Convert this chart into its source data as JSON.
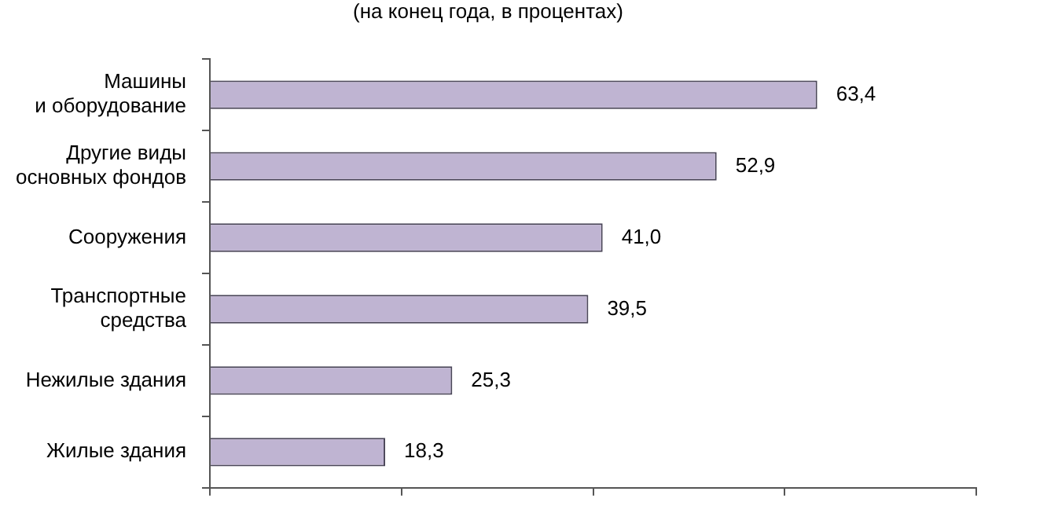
{
  "chart_data": {
    "type": "bar",
    "orientation": "horizontal",
    "subtitle": "(на конец года, в процентах)",
    "categories": [
      "Машины\nи оборудование",
      "Другие виды\nосновных фондов",
      "Сооружения",
      "Транспортные\nсредства",
      "Нежилые здания",
      "Жилые здания"
    ],
    "values": [
      63.4,
      52.9,
      41.0,
      39.5,
      25.3,
      18.3
    ],
    "value_labels": [
      "63,4",
      "52,9",
      "41,0",
      "39,5",
      "25,3",
      "18,3"
    ],
    "color": "#bfb4d2",
    "xlim": [
      0,
      80
    ],
    "xticks": [
      {
        "value": 0,
        "label": null
      },
      {
        "value": 20,
        "label": null
      },
      {
        "value": 40,
        "label": null
      },
      {
        "value": 60,
        "label": null
      },
      {
        "value": 80,
        "label": null
      }
    ],
    "tick_labels": "y",
    "grid": false,
    "legend": false
  }
}
